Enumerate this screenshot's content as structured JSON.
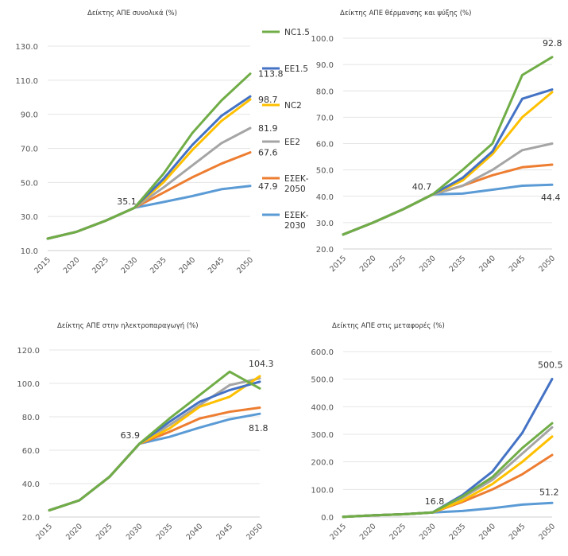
{
  "legend": {
    "position": "right-of-top-left-chart",
    "items": [
      {
        "name": "NC1.5",
        "lines": [
          "NC1.5"
        ],
        "color": "#70ad47"
      },
      {
        "name": "EE1.5",
        "lines": [
          "EE1.5"
        ],
        "color": "#4472c4"
      },
      {
        "name": "NC2",
        "lines": [
          "NC2"
        ],
        "color": "#ffc000"
      },
      {
        "name": "EE2",
        "lines": [
          "EE2"
        ],
        "color": "#a5a5a5"
      },
      {
        "name": "ΕΣΕΚ-2050",
        "lines": [
          "ΕΣΕΚ-",
          "2050"
        ],
        "color": "#ed7d31"
      },
      {
        "name": "ΕΣΕΚ-2030",
        "lines": [
          "ΕΣΕΚ-",
          "2030"
        ],
        "color": "#5b9bd5"
      }
    ]
  },
  "chart_data": [
    {
      "id": "total",
      "type": "line",
      "title": "Δείκτης ΑΠΕ συνολικά (%)",
      "categories": [
        "2015",
        "2020",
        "2025",
        "2030",
        "2035",
        "2040",
        "2045",
        "2050"
      ],
      "ylim": [
        10,
        130
      ],
      "yticks": [
        10,
        30,
        50,
        70,
        90,
        110,
        130
      ],
      "grid": true,
      "series": [
        {
          "name": "NC1.5",
          "color": "#70ad47",
          "values": [
            17.0,
            21.0,
            27.5,
            35.1,
            55.0,
            79.0,
            98.0,
            113.8
          ]
        },
        {
          "name": "EE1.5",
          "color": "#4472c4",
          "values": [
            17.0,
            21.0,
            27.5,
            35.1,
            52.0,
            72.0,
            89.0,
            100.5
          ]
        },
        {
          "name": "NC2",
          "color": "#ffc000",
          "values": [
            17.0,
            21.0,
            27.5,
            35.1,
            50.0,
            69.0,
            86.0,
            98.7
          ]
        },
        {
          "name": "EE2",
          "color": "#a5a5a5",
          "values": [
            17.0,
            21.0,
            27.5,
            35.1,
            47.0,
            60.0,
            73.0,
            81.9
          ]
        },
        {
          "name": "ΕΣΕΚ-2050",
          "color": "#ed7d31",
          "values": [
            17.0,
            21.0,
            27.5,
            35.1,
            44.0,
            53.0,
            61.0,
            67.6
          ]
        },
        {
          "name": "ΕΣΕΚ-2030",
          "color": "#5b9bd5",
          "values": [
            17.0,
            21.0,
            27.5,
            35.1,
            38.5,
            42.0,
            46.0,
            47.9
          ]
        }
      ],
      "annotations": [
        {
          "text": "113.8",
          "series": "NC1.5",
          "index": 7
        },
        {
          "text": "98.7",
          "series": "NC2",
          "index": 7
        },
        {
          "text": "81.9",
          "series": "EE2",
          "index": 7
        },
        {
          "text": "67.6",
          "series": "ΕΣΕΚ-2050",
          "index": 7
        },
        {
          "text": "47.9",
          "series": "ΕΣΕΚ-2030",
          "index": 7
        },
        {
          "text": "35.1",
          "series": "NC1.5",
          "index": 3
        }
      ]
    },
    {
      "id": "heating",
      "type": "line",
      "title": "Δείκτης ΑΠΕ θέρμανσης και ψύξης (%)",
      "categories": [
        "2015",
        "2020",
        "2025",
        "2030",
        "2035",
        "2040",
        "2045",
        "2050"
      ],
      "ylim": [
        20,
        100
      ],
      "yticks": [
        20,
        30,
        40,
        50,
        60,
        70,
        80,
        90,
        100
      ],
      "grid": true,
      "series": [
        {
          "name": "NC1.5",
          "color": "#70ad47",
          "values": [
            25.5,
            30.0,
            35.0,
            40.7,
            50.0,
            60.0,
            86.0,
            92.8
          ]
        },
        {
          "name": "EE1.5",
          "color": "#4472c4",
          "values": [
            25.5,
            30.0,
            35.0,
            40.7,
            47.0,
            57.0,
            77.0,
            80.5
          ]
        },
        {
          "name": "NC2",
          "color": "#ffc000",
          "values": [
            25.5,
            30.0,
            35.0,
            40.7,
            46.0,
            56.0,
            70.0,
            79.5
          ]
        },
        {
          "name": "EE2",
          "color": "#a5a5a5",
          "values": [
            25.5,
            30.0,
            35.0,
            40.7,
            44.0,
            50.0,
            57.5,
            60.0
          ]
        },
        {
          "name": "ΕΣΕΚ-2050",
          "color": "#ed7d31",
          "values": [
            25.5,
            30.0,
            35.0,
            40.7,
            44.0,
            48.0,
            51.0,
            52.0
          ]
        },
        {
          "name": "ΕΣΕΚ-2030",
          "color": "#5b9bd5",
          "values": [
            25.5,
            30.0,
            35.0,
            40.7,
            41.0,
            42.5,
            44.0,
            44.4
          ]
        }
      ],
      "annotations": [
        {
          "text": "92.8",
          "series": "NC1.5",
          "index": 7
        },
        {
          "text": "44.4",
          "series": "ΕΣΕΚ-2030",
          "index": 7
        },
        {
          "text": "40.7",
          "series": "NC1.5",
          "index": 3
        }
      ]
    },
    {
      "id": "electricity",
      "type": "line",
      "title": "Δείκτης ΑΠΕ στην ηλεκτροπαραγωγή (%)",
      "categories": [
        "2015",
        "2020",
        "2025",
        "2030",
        "2035",
        "2040",
        "2045",
        "2050"
      ],
      "ylim": [
        20,
        120
      ],
      "yticks": [
        20,
        40,
        60,
        80,
        100,
        120
      ],
      "grid": true,
      "series": [
        {
          "name": "NC1.5",
          "color": "#70ad47",
          "values": [
            24.0,
            30.0,
            44.0,
            63.9,
            79.0,
            93.0,
            107.0,
            97.0
          ]
        },
        {
          "name": "EE1.5",
          "color": "#4472c4",
          "values": [
            24.0,
            30.0,
            44.0,
            63.9,
            77.0,
            89.0,
            96.0,
            101.0
          ]
        },
        {
          "name": "NC2",
          "color": "#ffc000",
          "values": [
            24.0,
            30.0,
            44.0,
            63.9,
            73.0,
            86.0,
            92.0,
            104.3
          ]
        },
        {
          "name": "EE2",
          "color": "#a5a5a5",
          "values": [
            24.0,
            30.0,
            44.0,
            63.9,
            75.0,
            87.0,
            99.0,
            103.0
          ]
        },
        {
          "name": "ΕΣΕΚ-2050",
          "color": "#ed7d31",
          "values": [
            24.0,
            30.0,
            44.0,
            63.9,
            71.0,
            79.0,
            83.0,
            85.5
          ]
        },
        {
          "name": "ΕΣΕΚ-2030",
          "color": "#5b9bd5",
          "values": [
            24.0,
            30.0,
            44.0,
            63.9,
            68.0,
            73.5,
            78.5,
            81.8
          ]
        }
      ],
      "annotations": [
        {
          "text": "104.3",
          "series": "NC2",
          "index": 7
        },
        {
          "text": "81.8",
          "series": "ΕΣΕΚ-2030",
          "index": 7
        },
        {
          "text": "63.9",
          "series": "NC1.5",
          "index": 3
        }
      ]
    },
    {
      "id": "transport",
      "type": "line",
      "title": "Δείκτης ΑΠΕ στις μεταφορές (%)",
      "categories": [
        "2015",
        "2020",
        "2025",
        "2030",
        "2035",
        "2040",
        "2045",
        "2050"
      ],
      "ylim": [
        0,
        600
      ],
      "yticks": [
        0,
        100,
        200,
        300,
        400,
        500,
        600
      ],
      "grid": true,
      "series": [
        {
          "name": "NC1.5",
          "color": "#70ad47",
          "values": [
            1.0,
            6.0,
            10.0,
            16.8,
            75.0,
            145.0,
            250.0,
            340.0
          ]
        },
        {
          "name": "EE1.5",
          "color": "#4472c4",
          "values": [
            1.0,
            6.0,
            10.0,
            16.8,
            80.0,
            165.0,
            305.0,
            500.5
          ]
        },
        {
          "name": "NC2",
          "color": "#ffc000",
          "values": [
            1.0,
            6.0,
            10.0,
            16.8,
            60.0,
            120.0,
            200.0,
            292.0
          ]
        },
        {
          "name": "EE2",
          "color": "#a5a5a5",
          "values": [
            1.0,
            6.0,
            10.0,
            16.8,
            70.0,
            135.0,
            230.0,
            325.0
          ]
        },
        {
          "name": "ΕΣΕΚ-2050",
          "color": "#ed7d31",
          "values": [
            1.0,
            6.0,
            10.0,
            16.8,
            55.0,
            100.0,
            155.0,
            225.0
          ]
        },
        {
          "name": "ΕΣΕΚ-2030",
          "color": "#5b9bd5",
          "values": [
            1.0,
            6.0,
            10.0,
            16.8,
            22.0,
            32.0,
            45.0,
            51.2
          ]
        }
      ],
      "annotations": [
        {
          "text": "500.5",
          "series": "EE1.5",
          "index": 7
        },
        {
          "text": "51.2",
          "series": "ΕΣΕΚ-2030",
          "index": 7
        },
        {
          "text": "16.8",
          "series": "NC1.5",
          "index": 3
        }
      ]
    }
  ]
}
